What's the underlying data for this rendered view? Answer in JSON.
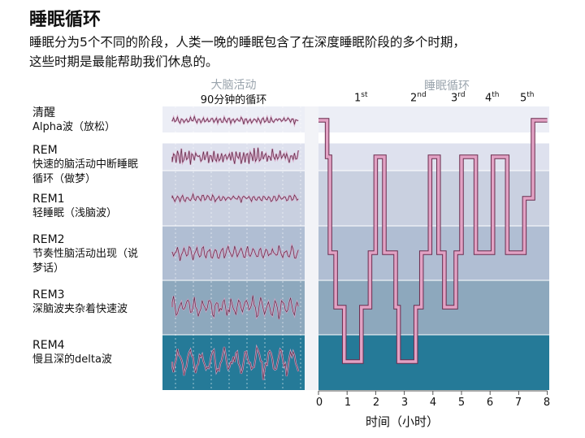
{
  "title": "睡眠循环",
  "subtitle_line1": "睡眠分为5个不同的阶段，人类一晚的睡眠包含了在深度睡眠阶段的多个时期，",
  "subtitle_line2": "这些时期是最能帮助我们休息的。",
  "brain_header": "大脑活动",
  "brain_subheader": "90分钟的循环",
  "cycle_header": "睡眠循环",
  "cycles": [
    {
      "num": "1",
      "sup": "st"
    },
    {
      "num": "2",
      "sup": "nd"
    },
    {
      "num": "3",
      "sup": "rd"
    },
    {
      "num": "4",
      "sup": "th"
    },
    {
      "num": "5",
      "sup": "th"
    }
  ],
  "stages": [
    {
      "name": "清醒",
      "desc": [
        "Alpha波（放松）"
      ],
      "color": "#eceef6"
    },
    {
      "name": "REM",
      "desc": [
        "快速的脑活动中断睡眠",
        "循环（做梦）"
      ],
      "color": "#dee1ee"
    },
    {
      "name": "REM1",
      "desc": [
        "轻睡眠（浅脑波）"
      ],
      "color": "#c9d0e0"
    },
    {
      "name": "REM2",
      "desc": [
        "节奏性脑活动出现（说",
        "梦话）"
      ],
      "color": "#b0bed3"
    },
    {
      "name": "REM3",
      "desc": [
        "深脑波夹杂着快速波"
      ],
      "color": "#8da8bd"
    },
    {
      "name": "REM4",
      "desc": [
        "慢且深的delta波"
      ],
      "color": "#257a98"
    }
  ],
  "x_ticks": [
    "0",
    "1",
    "2",
    "3",
    "4",
    "5",
    "6",
    "7",
    "8"
  ],
  "x_title": "时间（小时）",
  "hypnogram": {
    "line_color": "#e2a2c4",
    "path": [
      [
        0,
        0
      ],
      [
        0.3,
        0
      ],
      [
        0.3,
        1
      ],
      [
        0.4,
        1
      ],
      [
        0.4,
        3
      ],
      [
        0.6,
        3
      ],
      [
        0.6,
        4
      ],
      [
        0.9,
        4
      ],
      [
        0.9,
        5
      ],
      [
        1.5,
        5
      ],
      [
        1.5,
        4
      ],
      [
        1.8,
        4
      ],
      [
        1.8,
        3
      ],
      [
        2.0,
        3
      ],
      [
        2.0,
        1
      ],
      [
        2.3,
        1
      ],
      [
        2.3,
        3
      ],
      [
        2.7,
        3
      ],
      [
        2.7,
        4
      ],
      [
        2.8,
        4
      ],
      [
        2.8,
        5
      ],
      [
        3.4,
        5
      ],
      [
        3.4,
        4
      ],
      [
        3.6,
        4
      ],
      [
        3.6,
        3
      ],
      [
        3.9,
        3
      ],
      [
        3.9,
        1
      ],
      [
        4.2,
        1
      ],
      [
        4.2,
        3
      ],
      [
        4.4,
        3
      ],
      [
        4.4,
        4
      ],
      [
        4.8,
        4
      ],
      [
        4.8,
        3
      ],
      [
        5.0,
        3
      ],
      [
        5.0,
        1
      ],
      [
        5.5,
        1
      ],
      [
        5.5,
        3
      ],
      [
        6.1,
        3
      ],
      [
        6.1,
        1
      ],
      [
        6.6,
        1
      ],
      [
        6.6,
        3
      ],
      [
        7.2,
        3
      ],
      [
        7.2,
        2
      ],
      [
        7.5,
        2
      ],
      [
        7.5,
        0
      ],
      [
        8.0,
        0
      ]
    ]
  }
}
